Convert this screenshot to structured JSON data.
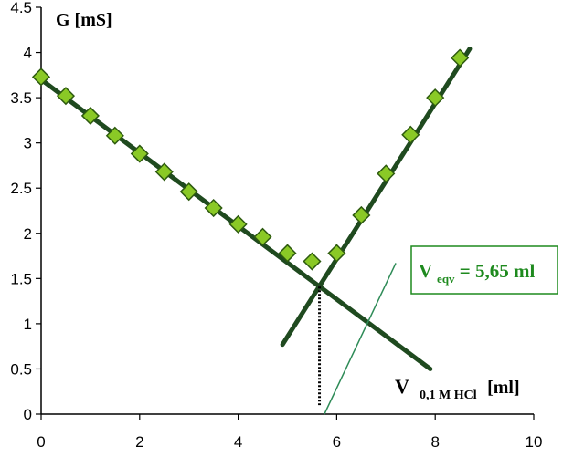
{
  "chart_data": {
    "type": "scatter",
    "title": "",
    "ylabel": "G [mS]",
    "xlabel": {
      "main": "V",
      "subscript": "0,1 M HCl",
      "unit": "[ml]"
    },
    "xlim": [
      0,
      10
    ],
    "ylim": [
      0,
      4.5
    ],
    "x_ticks": [
      0,
      2,
      4,
      6,
      8,
      10
    ],
    "y_ticks": [
      0,
      0.5,
      1,
      1.5,
      2,
      2.5,
      3,
      3.5,
      4,
      4.5
    ],
    "x_tick_labels": [
      "0",
      "2",
      "4",
      "6",
      "8",
      "10"
    ],
    "y_tick_labels": [
      "0",
      "0.5",
      "1",
      "1.5",
      "2",
      "2.5",
      "3",
      "3.5",
      "4",
      "4.5"
    ],
    "grid": false,
    "legend": null,
    "points": {
      "x": [
        0,
        0.5,
        1,
        1.5,
        2,
        2.5,
        3,
        3.5,
        4,
        4.5,
        5,
        5.5,
        6,
        6.5,
        7,
        7.5,
        8,
        8.5
      ],
      "y": [
        3.73,
        3.52,
        3.3,
        3.08,
        2.88,
        2.68,
        2.46,
        2.28,
        2.1,
        1.96,
        1.78,
        1.69,
        1.78,
        2.2,
        2.66,
        3.09,
        3.5,
        3.94
      ],
      "color": "#8ac926",
      "edge_color": "#2d5a0f"
    },
    "fit_lines": [
      {
        "x": [
          0,
          7.9
        ],
        "y": [
          3.7,
          0.5
        ],
        "color": "#1f4a1f"
      },
      {
        "x": [
          4.9,
          8.7
        ],
        "y": [
          0.77,
          4.04
        ],
        "color": "#1f4a1f"
      }
    ],
    "equivalence": {
      "x": 5.65,
      "y": 1.41,
      "marker_color": "#000000"
    },
    "tangent_line": {
      "x": [
        5.75,
        7.2
      ],
      "y": [
        0,
        1.67
      ],
      "color": "#2e8b57"
    },
    "annotation": {
      "prefix": "V",
      "subscript": "eqv",
      "value_text": " = 5,65 ml",
      "text_color": "#1e8a1e",
      "border_color": "#1e8a1e"
    }
  }
}
